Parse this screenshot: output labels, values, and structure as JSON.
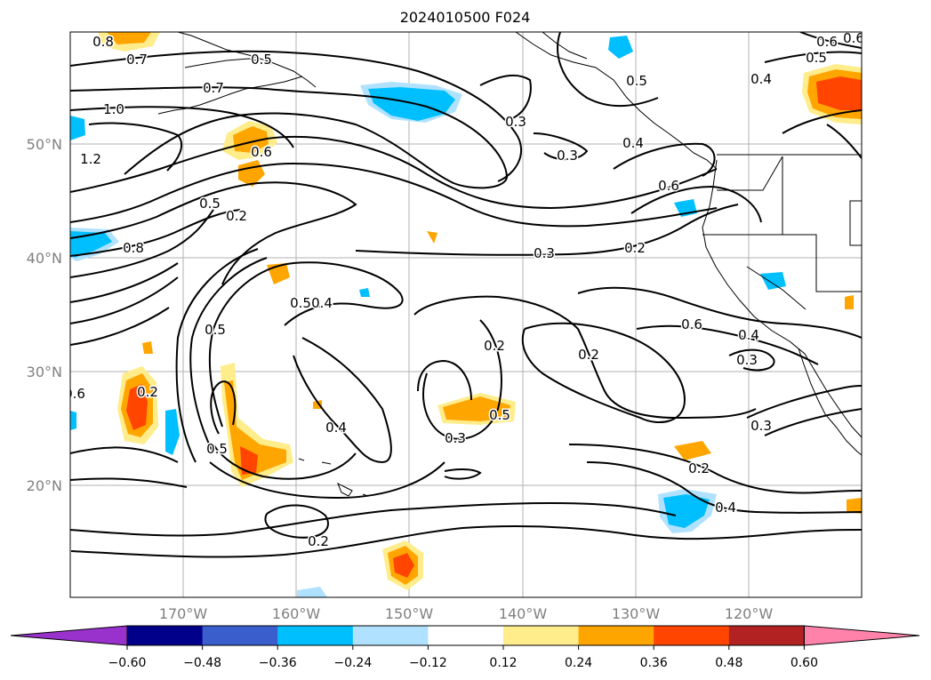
{
  "title": "2024010500 F024",
  "lat_labels": [
    "50°N",
    "40°N",
    "30°N",
    "20°N"
  ],
  "lon_labels": [
    "170°W",
    "160°W",
    "150°W",
    "140°W",
    "130°W",
    "120°W"
  ],
  "colorbar": {
    "ticks": [
      "−0.60",
      "−0.48",
      "−0.36",
      "−0.24",
      "−0.12",
      "0.12",
      "0.24",
      "0.36",
      "0.48",
      "0.60"
    ],
    "colors": [
      "#9932cc",
      "#00008b",
      "#3a5fcd",
      "#00bfff",
      "#b0e2ff",
      "#ffffff",
      "#ffec8b",
      "#ffa500",
      "#ff4500",
      "#b22222",
      "#ff82ab"
    ]
  },
  "contour_labels": [
    "0.8",
    "0.7",
    "0.5",
    "0.6",
    "0.4",
    "0.5",
    "0.6",
    "1.0",
    "0.7",
    "0.3",
    "0.4",
    "0.5",
    "0.3",
    "1.2",
    "0.6",
    "0.5",
    "0.2",
    "0.8",
    "0.3",
    "0.2",
    "0.6",
    "0.5",
    "0.4",
    "0.5",
    "0.6",
    "0.4",
    "0.3",
    "0.2",
    "0.2",
    "0.2",
    "0.6",
    "0.4",
    "0.5",
    "0.5",
    "0.3",
    "0.3",
    "0.2",
    "0.4",
    "0.2"
  ]
}
